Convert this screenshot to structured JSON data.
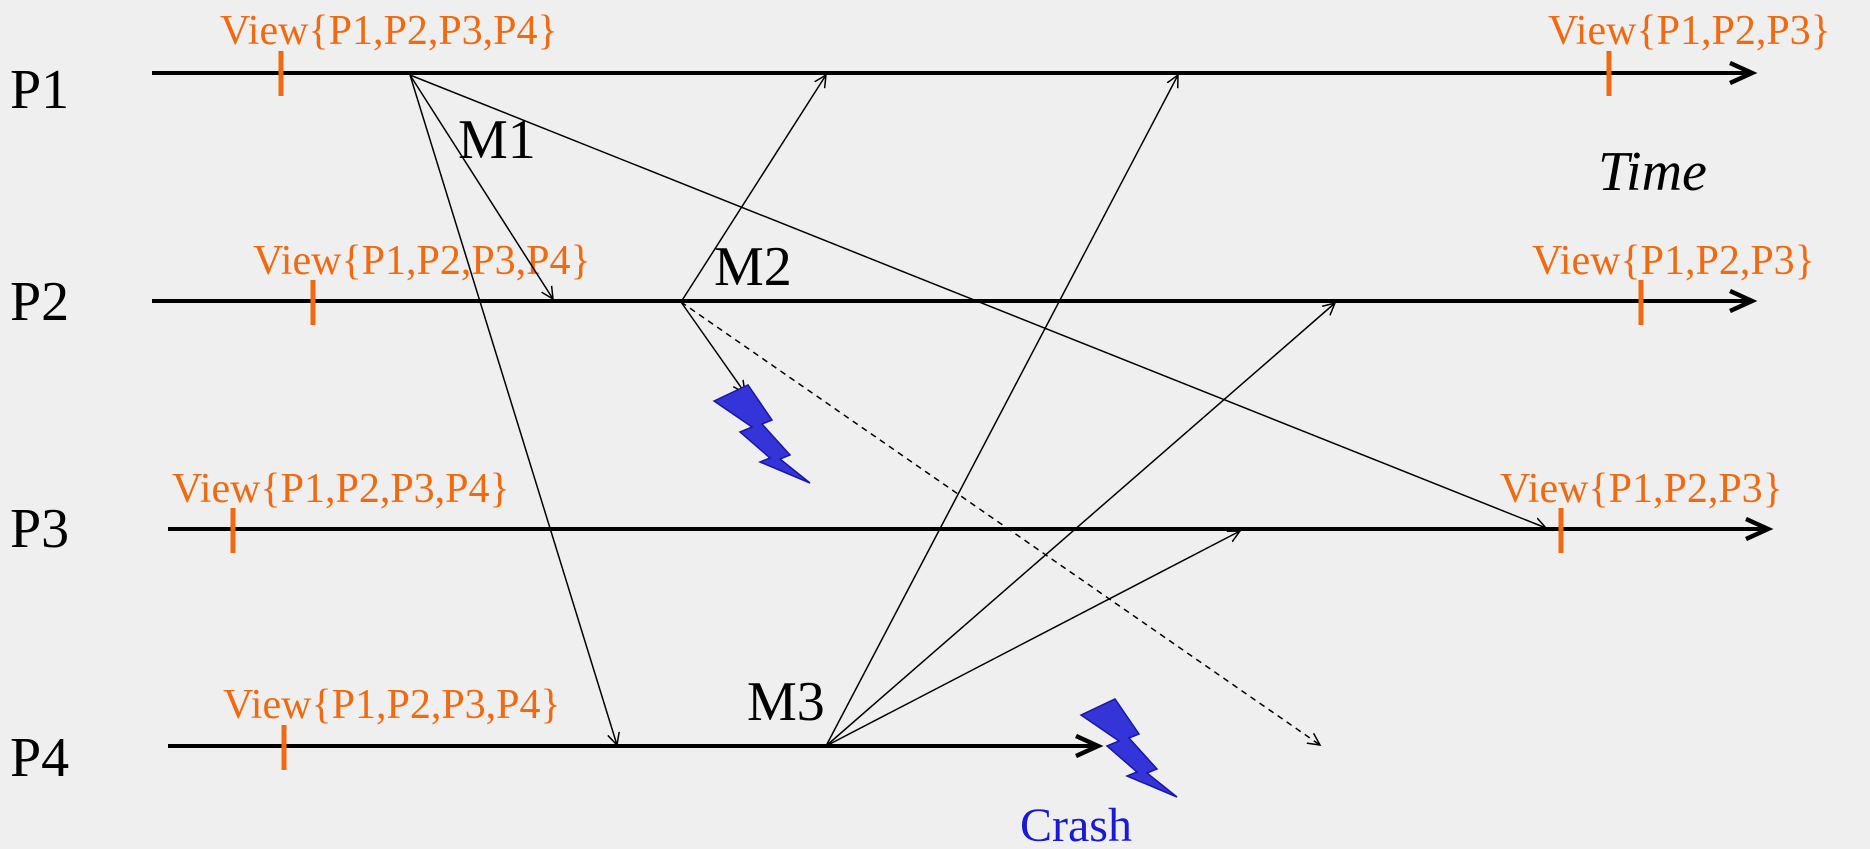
{
  "colors": {
    "background": "#efefef",
    "view": "#f26a10",
    "crash": "#1a1ad6",
    "line": "#000000"
  },
  "processes": [
    {
      "id": "P1",
      "label": "P1"
    },
    {
      "id": "P2",
      "label": "P2"
    },
    {
      "id": "P3",
      "label": "P3"
    },
    {
      "id": "P4",
      "label": "P4"
    }
  ],
  "views": {
    "P1": {
      "before": "View{P1,P2,P3,P4}",
      "after": "View{P1,P2,P3}"
    },
    "P2": {
      "before": "View{P1,P2,P3,P4}",
      "after": "View{P1,P2,P3}"
    },
    "P3": {
      "before": "View{P1,P2,P3,P4}",
      "after": "View{P1,P2,P3}"
    },
    "P4": {
      "before": "View{P1,P2,P3,P4}"
    }
  },
  "messages": {
    "m1": {
      "label": "M1",
      "sender": "P1",
      "receivers": [
        "P2",
        "P3",
        "P4"
      ]
    },
    "m2": {
      "label": "M2",
      "sender": "P2",
      "receivers": [
        "P1",
        "P4"
      ],
      "lost": "P3"
    },
    "m3": {
      "label": "M3",
      "sender": "P4",
      "receivers": [
        "P1",
        "P2",
        "P3"
      ]
    }
  },
  "axis": {
    "time_label": "Time"
  },
  "crash": {
    "label": "Crash",
    "process": "P4",
    "icon": "lightning-bolt-icon"
  }
}
